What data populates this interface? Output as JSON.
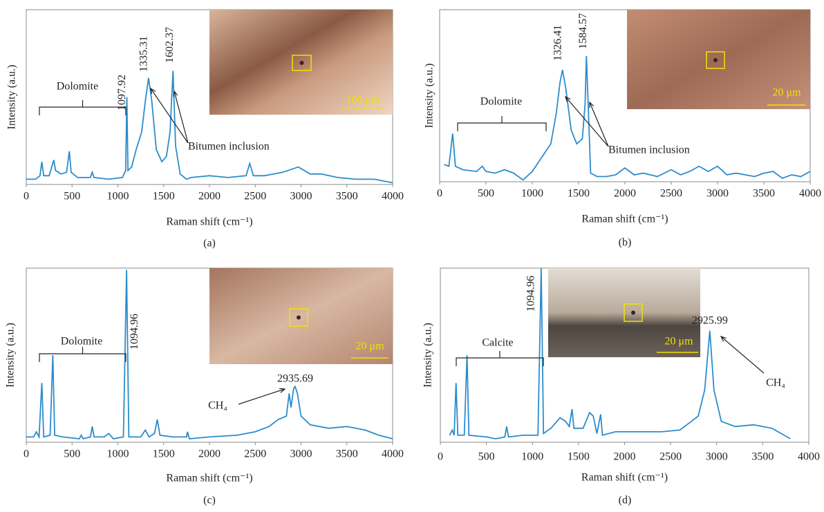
{
  "chart_data": [
    {
      "type": "line",
      "panel_label": "(a)",
      "x_label": "Raman shift (cm⁻¹)",
      "y_label": "Intensity (a.u.)",
      "color": "#2a8ccc",
      "xlim": [
        0,
        4000
      ],
      "xticks": [
        0,
        500,
        1000,
        1500,
        2000,
        2500,
        3000,
        3500,
        4000
      ],
      "ylim": [
        0,
        100
      ],
      "x": [
        0,
        100,
        150,
        170,
        190,
        250,
        300,
        320,
        380,
        440,
        470,
        490,
        560,
        700,
        720,
        740,
        900,
        1050,
        1085,
        1098,
        1110,
        1150,
        1200,
        1260,
        1300,
        1335,
        1370,
        1420,
        1480,
        1530,
        1570,
        1602,
        1630,
        1680,
        1750,
        1800,
        2000,
        2200,
        2400,
        2440,
        2480,
        2600,
        2800,
        2970,
        3100,
        3220,
        3400,
        3600,
        3800,
        4000
      ],
      "values": [
        3,
        3,
        5,
        13,
        5,
        5,
        14,
        8,
        6,
        7,
        19,
        7,
        4,
        4,
        7,
        4,
        3,
        4,
        8,
        50,
        8,
        10,
        20,
        30,
        48,
        61,
        48,
        20,
        13,
        16,
        30,
        65,
        22,
        6,
        3,
        4,
        5,
        4,
        5,
        12,
        5,
        5,
        7,
        10,
        6,
        6,
        4,
        3,
        3,
        1
      ],
      "peaks": [
        1097.92,
        1335.31,
        1602.37
      ],
      "bracket_label": "Dolomite",
      "inclusion_label": "Bitumen inclusion",
      "scale_label": "100 μm"
    },
    {
      "type": "line",
      "panel_label": "(b)",
      "x_label": "Raman shift (cm⁻¹)",
      "y_label": "Intensity (a.u.)",
      "color": "#2a8ccc",
      "xlim": [
        0,
        4000
      ],
      "xticks": [
        0,
        500,
        1000,
        1500,
        2000,
        2500,
        3000,
        3500,
        4000
      ],
      "ylim": [
        0,
        100
      ],
      "x": [
        50,
        100,
        140,
        170,
        250,
        400,
        460,
        500,
        600,
        700,
        800,
        900,
        1000,
        1100,
        1200,
        1260,
        1300,
        1326,
        1360,
        1420,
        1480,
        1540,
        1570,
        1584,
        1600,
        1630,
        1700,
        1800,
        1900,
        2000,
        2100,
        2200,
        2350,
        2500,
        2600,
        2700,
        2800,
        2900,
        3000,
        3100,
        3200,
        3400,
        3500,
        3600,
        3700,
        3800,
        3900,
        4000
      ],
      "values": [
        10,
        9,
        28,
        9,
        7,
        6,
        9,
        6,
        5,
        7,
        5,
        1,
        6,
        14,
        22,
        40,
        58,
        65,
        55,
        30,
        22,
        25,
        45,
        73,
        50,
        5,
        3,
        3,
        4,
        8,
        4,
        5,
        3,
        7,
        4,
        6,
        9,
        6,
        9,
        4,
        5,
        3,
        5,
        6,
        2,
        4,
        3,
        6
      ],
      "peaks": [
        1326.41,
        1584.57
      ],
      "bracket_label": "Dolomite",
      "inclusion_label": "Bitumen inclusion",
      "scale_label": "20 μm"
    },
    {
      "type": "line",
      "panel_label": "(c)",
      "x_label": "Raman shift (cm⁻¹)",
      "y_label": "Intensity (a.u.)",
      "color": "#2a8ccc",
      "xlim": [
        0,
        4000
      ],
      "xticks": [
        0,
        500,
        1000,
        1500,
        2000,
        2500,
        3000,
        3500,
        4000
      ],
      "ylim": [
        0,
        100
      ],
      "x": [
        0,
        80,
        110,
        140,
        170,
        190,
        260,
        290,
        310,
        400,
        580,
        600,
        620,
        700,
        720,
        740,
        850,
        900,
        950,
        1060,
        1095,
        1120,
        1250,
        1300,
        1340,
        1400,
        1430,
        1460,
        1600,
        1750,
        1760,
        1780,
        2000,
        2300,
        2500,
        2650,
        2750,
        2840,
        2870,
        2890,
        2920,
        2935,
        2960,
        3000,
        3100,
        3300,
        3500,
        3700,
        3850,
        4000
      ],
      "values": [
        3,
        3,
        6,
        3,
        34,
        3,
        4,
        50,
        4,
        3,
        2,
        4,
        2,
        3,
        9,
        3,
        3,
        5,
        2,
        3,
        99,
        3,
        3,
        7,
        3,
        5,
        13,
        4,
        3,
        3,
        6,
        2,
        3,
        4,
        6,
        9,
        13,
        15,
        28,
        20,
        31,
        32,
        28,
        15,
        10,
        8,
        9,
        7,
        4,
        2
      ],
      "peaks": [
        1094.96,
        2935.69
      ],
      "bracket_label": "Dolomite",
      "gas_label": "CH₄",
      "scale_label": "20 μm"
    },
    {
      "type": "line",
      "panel_label": "(d)",
      "x_label": "Raman shift (cm⁻¹)",
      "y_label": "Intensity (a.u.)",
      "color": "#2a8ccc",
      "xlim": [
        0,
        4000
      ],
      "xticks": [
        0,
        500,
        1000,
        1500,
        2000,
        2500,
        3000,
        3500,
        4000
      ],
      "ylim": [
        0,
        100
      ],
      "x": [
        100,
        130,
        150,
        170,
        190,
        260,
        290,
        310,
        500,
        600,
        700,
        720,
        740,
        900,
        1060,
        1095,
        1120,
        1200,
        1300,
        1360,
        1400,
        1430,
        1450,
        1550,
        1620,
        1660,
        1700,
        1740,
        1760,
        1900,
        2100,
        2400,
        2600,
        2700,
        2800,
        2870,
        2925,
        2970,
        3050,
        3200,
        3400,
        3600,
        3700,
        3800
      ],
      "values": [
        4,
        7,
        4,
        34,
        4,
        4,
        50,
        4,
        3,
        2,
        3,
        9,
        3,
        4,
        4,
        100,
        5,
        8,
        14,
        12,
        9,
        19,
        8,
        8,
        17,
        15,
        5,
        16,
        4,
        6,
        6,
        6,
        7,
        11,
        15,
        30,
        64,
        30,
        12,
        9,
        10,
        8,
        5,
        2
      ],
      "peaks": [
        1094.96,
        2925.99
      ],
      "bracket_label": "Calcite",
      "gas_label": "CH₄",
      "scale_label": "20 μm"
    }
  ]
}
